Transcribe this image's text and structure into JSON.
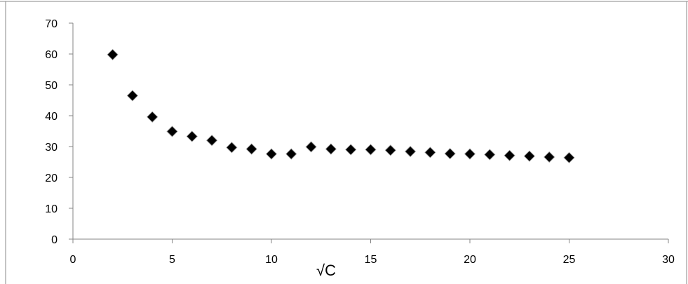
{
  "chart_data": {
    "type": "scatter",
    "title": "",
    "xlabel": "√C",
    "ylabel": "",
    "xlim": [
      0,
      30
    ],
    "ylim": [
      0,
      70
    ],
    "x_ticks": [
      0,
      5,
      10,
      15,
      20,
      25,
      30
    ],
    "y_ticks": [
      0,
      10,
      20,
      30,
      40,
      50,
      60,
      70
    ],
    "grid": false,
    "legend": "none",
    "marker": "diamond",
    "marker_color": "#000000",
    "series": [
      {
        "x": [
          2,
          3,
          4,
          5,
          6,
          7,
          8,
          9,
          10,
          11,
          12,
          13,
          14,
          15,
          16,
          17,
          18,
          19,
          20,
          21,
          22,
          23,
          24,
          25
        ],
        "y": [
          59.8,
          46.5,
          39.6,
          34.9,
          33.3,
          32.0,
          29.7,
          29.2,
          27.6,
          27.6,
          29.9,
          29.2,
          29.0,
          29.0,
          28.8,
          28.4,
          28.1,
          27.7,
          27.6,
          27.4,
          27.1,
          26.9,
          26.6,
          26.4
        ]
      }
    ]
  }
}
